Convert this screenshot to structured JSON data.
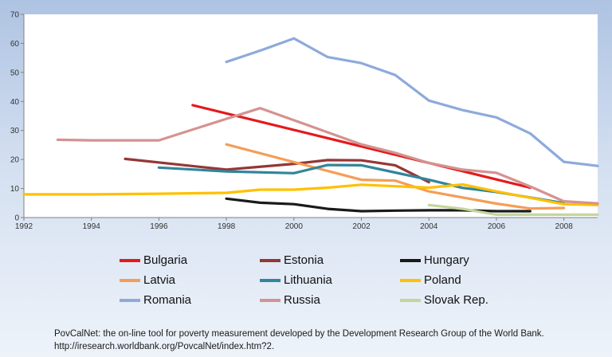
{
  "chart_data": {
    "type": "line",
    "title": "",
    "xlabel": "",
    "ylabel": "",
    "xlim": [
      1992,
      2009
    ],
    "ylim": [
      0,
      70
    ],
    "x_ticks": [
      "1992",
      "1994",
      "1996",
      "1998",
      "2000",
      "2002",
      "2004",
      "2006",
      "2008"
    ],
    "y_ticks": [
      "0",
      "10",
      "20",
      "30",
      "40",
      "50",
      "60",
      "70"
    ],
    "grid": false,
    "legend_position": "bottom",
    "series": [
      {
        "name": "Bulgaria",
        "color": "#e31a1c",
        "points": [
          [
            1997,
            38.7
          ],
          [
            2007,
            10.3
          ]
        ]
      },
      {
        "name": "Estonia",
        "color": "#953735",
        "points": [
          [
            1995,
            20.2
          ],
          [
            1998,
            16.5
          ],
          [
            2000,
            18.5
          ],
          [
            2001,
            19.8
          ],
          [
            2002,
            19.7
          ],
          [
            2003,
            18.0
          ],
          [
            2004,
            12.2
          ]
        ]
      },
      {
        "name": "Hungary",
        "color": "#1a1a1a",
        "points": [
          [
            1998,
            6.5
          ],
          [
            1999,
            5.1
          ],
          [
            2000,
            4.6
          ],
          [
            2001,
            3.0
          ],
          [
            2002,
            2.2
          ],
          [
            2003,
            2.4
          ],
          [
            2004,
            2.5
          ],
          [
            2005,
            2.5
          ],
          [
            2006,
            2.2
          ],
          [
            2007,
            2.2
          ]
        ]
      },
      {
        "name": "Latvia",
        "color": "#f59d56",
        "points": [
          [
            1998,
            25.2
          ],
          [
            2002,
            13.0
          ],
          [
            2003,
            12.7
          ],
          [
            2004,
            9.0
          ],
          [
            2006,
            4.8
          ],
          [
            2007,
            3.1
          ],
          [
            2008,
            3.3
          ]
        ]
      },
      {
        "name": "Lithuania",
        "color": "#31859c",
        "points": [
          [
            1996,
            17.2
          ],
          [
            1998,
            15.9
          ],
          [
            2000,
            15.3
          ],
          [
            2001,
            18.1
          ],
          [
            2002,
            18.0
          ],
          [
            2003,
            15.5
          ],
          [
            2004,
            13.0
          ],
          [
            2005,
            10.2
          ],
          [
            2006,
            8.8
          ],
          [
            2008,
            5.0
          ]
        ]
      },
      {
        "name": "Poland",
        "color": "#ffc000",
        "points": [
          [
            1992,
            8.0
          ],
          [
            1994,
            8.0
          ],
          [
            1995,
            8.1
          ],
          [
            1996,
            8.2
          ],
          [
            1998,
            8.5
          ],
          [
            1999,
            9.6
          ],
          [
            2000,
            9.6
          ],
          [
            2001,
            10.3
          ],
          [
            2002,
            11.3
          ],
          [
            2003,
            10.8
          ],
          [
            2004,
            10.3
          ],
          [
            2005,
            11.4
          ],
          [
            2006,
            9.0
          ],
          [
            2008,
            4.6
          ],
          [
            2009,
            4.3
          ]
        ]
      },
      {
        "name": "Romania",
        "color": "#8eaadb",
        "points": [
          [
            1998,
            53.6
          ],
          [
            1999,
            57.5
          ],
          [
            2000,
            61.7
          ],
          [
            2001,
            55.3
          ],
          [
            2002,
            53.2
          ],
          [
            2003,
            49.1
          ],
          [
            2004,
            40.3
          ],
          [
            2005,
            37.0
          ],
          [
            2006,
            34.5
          ],
          [
            2007,
            29.0
          ],
          [
            2008,
            19.2
          ],
          [
            2009,
            17.8
          ]
        ]
      },
      {
        "name": "Russia",
        "color": "#d59290",
        "points": [
          [
            1993,
            26.8
          ],
          [
            1994,
            26.6
          ],
          [
            1996,
            26.6
          ],
          [
            1998,
            34.0
          ],
          [
            1999,
            37.7
          ],
          [
            2002,
            25.2
          ],
          [
            2003,
            22.3
          ],
          [
            2004,
            18.8
          ],
          [
            2005,
            16.5
          ],
          [
            2006,
            15.4
          ],
          [
            2007,
            10.7
          ],
          [
            2008,
            5.6
          ],
          [
            2009,
            4.9
          ]
        ]
      },
      {
        "name": "Slovak Rep.",
        "color": "#c3d69b",
        "points": [
          [
            2004,
            4.3
          ],
          [
            2005,
            3.0
          ],
          [
            2006,
            1.0
          ],
          [
            2009,
            1.0
          ]
        ]
      }
    ]
  },
  "footer": {
    "line1": "PovCalNet: the on-line tool for poverty measurement developed by the Development Research Group of the World Bank.",
    "line2": "http://iresearch.worldbank.org/PovcalNet/index.htm?2."
  }
}
